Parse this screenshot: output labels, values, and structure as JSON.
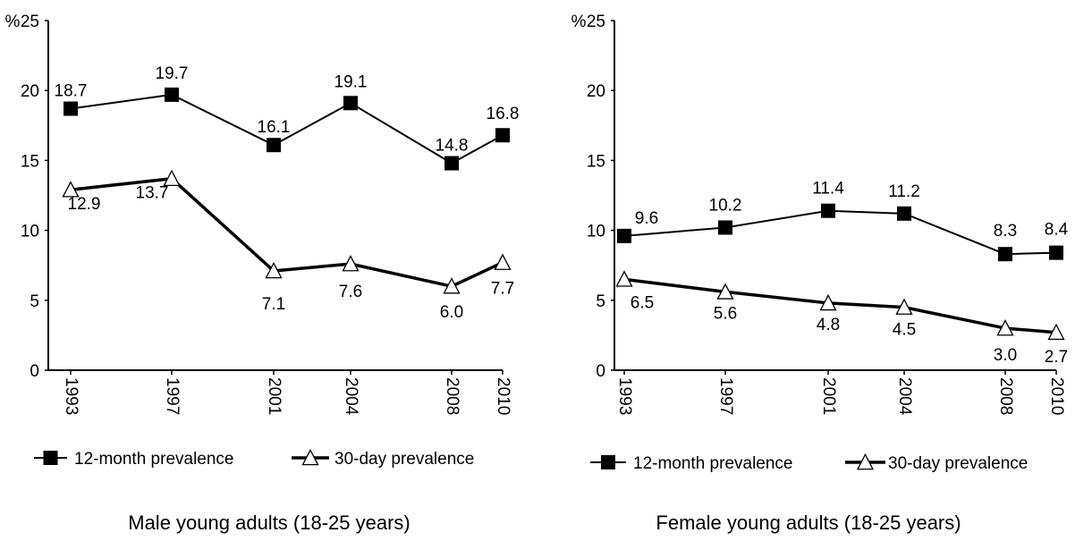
{
  "chart_data": [
    {
      "type": "line",
      "title": "Male young adults (18-25 years)",
      "unit_label": "%",
      "x": [
        "1993",
        "1997",
        "2001",
        "2004",
        "2008",
        "2010"
      ],
      "ylim": [
        0,
        25
      ],
      "yticks": [
        "0",
        "5",
        "10",
        "15",
        "20",
        "25"
      ],
      "series": [
        {
          "name": "12-month prevalence",
          "marker": "square",
          "values": [
            18.7,
            19.7,
            16.1,
            19.1,
            14.8,
            16.8
          ],
          "labels": [
            "18.7",
            "19.7",
            "16.1",
            "19.1",
            "14.8",
            "16.8"
          ]
        },
        {
          "name": "30-day prevalence",
          "marker": "triangle",
          "values": [
            12.9,
            13.7,
            7.1,
            7.6,
            6.0,
            7.7
          ],
          "labels": [
            "12.9",
            "13.7",
            "7.1",
            "7.6",
            "6.0",
            "7.7"
          ]
        }
      ]
    },
    {
      "type": "line",
      "title": "Female young adults (18-25 years)",
      "unit_label": "%",
      "x": [
        "1993",
        "1997",
        "2001",
        "2004",
        "2008",
        "2010"
      ],
      "ylim": [
        0,
        25
      ],
      "yticks": [
        "0",
        "5",
        "10",
        "15",
        "20",
        "25"
      ],
      "series": [
        {
          "name": "12-month prevalence",
          "marker": "square",
          "values": [
            9.6,
            10.2,
            11.4,
            11.2,
            8.3,
            8.4
          ],
          "labels": [
            "9.6",
            "10.2",
            "11.4",
            "11.2",
            "8.3",
            "8.4"
          ]
        },
        {
          "name": "30-day prevalence",
          "marker": "triangle",
          "values": [
            6.5,
            5.6,
            4.8,
            4.5,
            3.0,
            2.7
          ],
          "labels": [
            "6.5",
            "5.6",
            "4.8",
            "4.5",
            "3.0",
            "2.7"
          ]
        }
      ]
    }
  ]
}
